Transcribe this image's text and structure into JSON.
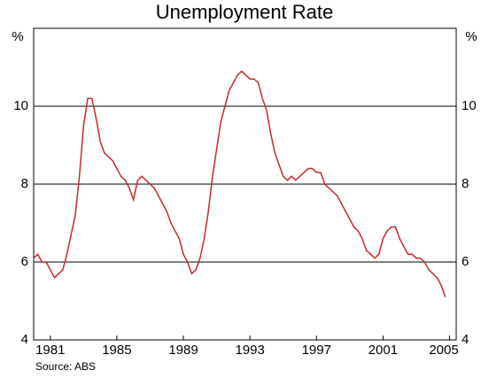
{
  "chart_data": {
    "type": "line",
    "title": "Unemployment Rate",
    "y_unit": "%",
    "source": "Source: ABS",
    "x": [
      1980,
      1980.25,
      1980.5,
      1980.75,
      1981,
      1981.25,
      1981.5,
      1981.75,
      1982,
      1982.25,
      1982.5,
      1982.75,
      1983,
      1983.25,
      1983.5,
      1983.75,
      1984,
      1984.25,
      1984.5,
      1984.75,
      1985,
      1985.25,
      1985.5,
      1985.75,
      1986,
      1986.25,
      1986.5,
      1986.75,
      1987,
      1987.25,
      1987.5,
      1987.75,
      1988,
      1988.25,
      1988.5,
      1988.75,
      1989,
      1989.25,
      1989.5,
      1989.75,
      1990,
      1990.25,
      1990.5,
      1990.75,
      1991,
      1991.25,
      1991.5,
      1991.75,
      1992,
      1992.25,
      1992.5,
      1992.75,
      1993,
      1993.25,
      1993.5,
      1993.75,
      1994,
      1994.25,
      1994.5,
      1994.75,
      1995,
      1995.25,
      1995.5,
      1995.75,
      1996,
      1996.25,
      1996.5,
      1996.75,
      1997,
      1997.25,
      1997.5,
      1997.75,
      1998,
      1998.25,
      1998.5,
      1998.75,
      1999,
      1999.25,
      1999.5,
      1999.75,
      2000,
      2000.25,
      2000.5,
      2000.75,
      2001,
      2001.25,
      2001.5,
      2001.75,
      2002,
      2002.25,
      2002.5,
      2002.75,
      2003,
      2003.25,
      2003.5,
      2003.75,
      2004,
      2004.25,
      2004.5,
      2004.75
    ],
    "series": [
      {
        "name": "Unemployment rate",
        "color": "#c8282a",
        "values": [
          6.1,
          6.2,
          6.0,
          6.0,
          5.8,
          5.6,
          5.7,
          5.8,
          6.2,
          6.7,
          7.2,
          8.2,
          9.5,
          10.2,
          10.2,
          9.7,
          9.1,
          8.8,
          8.7,
          8.6,
          8.4,
          8.2,
          8.1,
          7.9,
          7.6,
          8.1,
          8.2,
          8.1,
          8.0,
          7.9,
          7.7,
          7.5,
          7.3,
          7.0,
          6.8,
          6.6,
          6.2,
          6.0,
          5.7,
          5.8,
          6.1,
          6.6,
          7.3,
          8.2,
          8.9,
          9.6,
          10.0,
          10.4,
          10.6,
          10.8,
          10.9,
          10.8,
          10.7,
          10.7,
          10.6,
          10.2,
          9.9,
          9.3,
          8.8,
          8.5,
          8.2,
          8.1,
          8.2,
          8.1,
          8.2,
          8.3,
          8.4,
          8.4,
          8.3,
          8.3,
          8.0,
          7.9,
          7.8,
          7.7,
          7.5,
          7.3,
          7.1,
          6.9,
          6.8,
          6.6,
          6.3,
          6.2,
          6.1,
          6.2,
          6.6,
          6.8,
          6.9,
          6.9,
          6.6,
          6.4,
          6.2,
          6.2,
          6.1,
          6.1,
          6.0,
          5.8,
          5.7,
          5.6,
          5.4,
          5.1
        ]
      }
    ],
    "xlim": [
      1980,
      2005.4
    ],
    "xticks": [
      1981,
      1985,
      1989,
      1993,
      1997,
      2001,
      2005
    ],
    "ylim": [
      4,
      12
    ],
    "yticks": [
      4,
      6,
      8,
      10
    ],
    "grid": true
  }
}
